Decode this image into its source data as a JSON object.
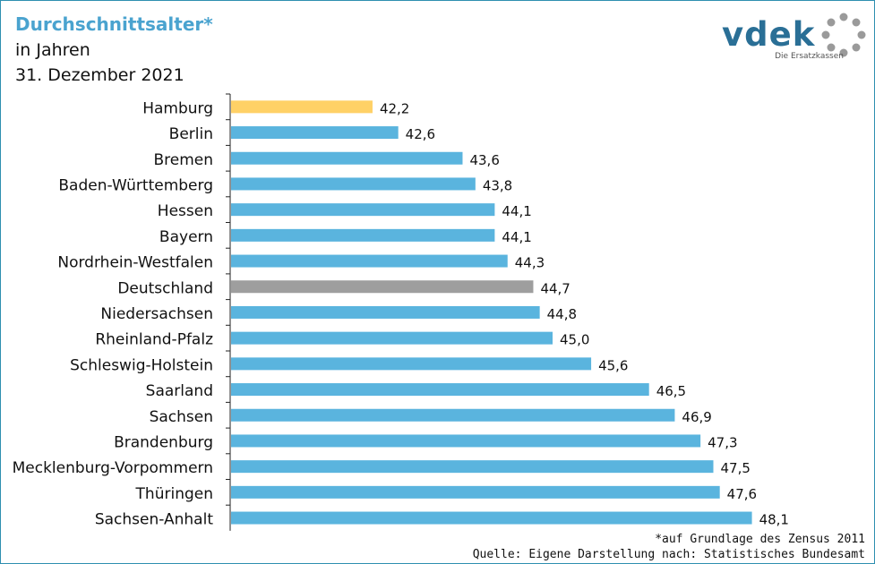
{
  "header": {
    "title": "Durchschnittsalter*",
    "subtitle": "in Jahren",
    "date": "31. Dezember 2021"
  },
  "logo": {
    "word": "vdek",
    "tagline": "Die Ersatzkassen",
    "icon": "dotted-circle-icon"
  },
  "footer": {
    "note": "*auf Grundlage des Zensus 2011",
    "source": "Quelle: Eigene Darstellung nach: Statistisches Bundesamt"
  },
  "colors": {
    "default": "#5ab4de",
    "highlight": "#ffd166",
    "national": "#9e9e9e",
    "title": "#4aa3cf",
    "logo": "#2a6f96"
  },
  "chart_data": {
    "type": "bar",
    "orientation": "horizontal",
    "title": "Durchschnittsalter*",
    "subtitle": "in Jahren",
    "xlim": [
      40,
      49
    ],
    "grid": false,
    "categories": [
      "Hamburg",
      "Berlin",
      "Bremen",
      "Baden-Württemberg",
      "Hessen",
      "Bayern",
      "Nordrhein-Westfalen",
      "Deutschland",
      "Niedersachsen",
      "Rheinland-Pfalz",
      "Schleswig-Holstein",
      "Saarland",
      "Sachsen",
      "Brandenburg",
      "Mecklenburg-Vorpommern",
      "Thüringen",
      "Sachsen-Anhalt"
    ],
    "values": [
      42.2,
      42.6,
      43.6,
      43.8,
      44.1,
      44.1,
      44.3,
      44.7,
      44.8,
      45.0,
      45.6,
      46.5,
      46.9,
      47.3,
      47.5,
      47.6,
      48.1
    ],
    "value_labels": [
      "42,2",
      "42,6",
      "43,6",
      "43,8",
      "44,1",
      "44,1",
      "44,3",
      "44,7",
      "44,8",
      "45,0",
      "45,6",
      "46,5",
      "46,9",
      "47,3",
      "47,5",
      "47,6",
      "48,1"
    ],
    "highlight": {
      "Hamburg": "highlight",
      "Deutschland": "national"
    }
  }
}
